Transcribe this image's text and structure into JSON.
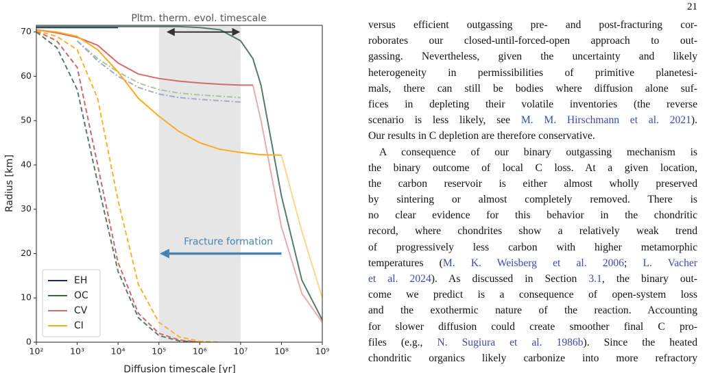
{
  "page_number": "21",
  "chart_data": {
    "type": "line",
    "title": "Pltm. therm. evol. timescale",
    "x_label": "Diffusion timescale [yr]",
    "y_label": "Radius [km]",
    "x_scale": "log",
    "xlim": [
      100,
      1000000000
    ],
    "ylim": [
      0,
      71.5
    ],
    "xticks": [
      {
        "value": 100,
        "label": "10²"
      },
      {
        "value": 1000,
        "label": "10³"
      },
      {
        "value": 10000,
        "label": "10⁴"
      },
      {
        "value": 100000,
        "label": "10⁵"
      },
      {
        "value": 1000000,
        "label": "10⁶"
      },
      {
        "value": 10000000,
        "label": "10⁷"
      },
      {
        "value": 100000000,
        "label": "10⁸"
      },
      {
        "value": 1000000000,
        "label": "10⁹"
      }
    ],
    "yticks": [
      0,
      10,
      20,
      30,
      40,
      50,
      60,
      70
    ],
    "legend": "lower left",
    "shade": {
      "x": [
        100000,
        10000000
      ],
      "color": "#e6e6e6"
    },
    "double_arrow": {
      "x": [
        150000,
        10000000
      ],
      "y": 70,
      "color": "#333333"
    },
    "annotation": {
      "text": "Fracture formation",
      "x": [
        100000000,
        100000
      ],
      "y": 20,
      "color": "#4682b4"
    },
    "x": [
      100,
      316,
      1000,
      3162,
      10000,
      31623,
      100000,
      316228,
      1000000,
      3162278,
      10000000,
      20000000,
      31622777,
      100000000,
      316227766,
      1000000000
    ],
    "series": [
      {
        "color": "#a8c4a0",
        "dash": "dashdot",
        "values": [
          null,
          null,
          68,
          64,
          61,
          58.5,
          57,
          56.2,
          55.8,
          55.5,
          55.2,
          null,
          null,
          null,
          null,
          null
        ]
      },
      {
        "color": "#a4a8cc",
        "dash": "dashdot",
        "values": [
          null,
          null,
          68,
          63.5,
          60,
          57.5,
          56,
          55.2,
          54.8,
          54.5,
          54.2,
          null,
          null,
          null,
          null,
          null
        ]
      },
      {
        "color": "#e8acac",
        "dash": "solid",
        "values": [
          null,
          null,
          null,
          null,
          null,
          null,
          null,
          null,
          null,
          null,
          null,
          58,
          50,
          26,
          11,
          4.5
        ]
      },
      {
        "color": "#ffd58e",
        "dash": "solid",
        "values": [
          null,
          null,
          null,
          null,
          null,
          null,
          null,
          null,
          null,
          null,
          null,
          null,
          null,
          42.2,
          25,
          10
        ]
      },
      {
        "color": "#557a68",
        "dash": "dashed",
        "values": [
          70,
          66.5,
          57,
          36,
          16,
          5.5,
          1.5,
          0.3,
          0,
          null,
          null,
          null,
          null,
          null,
          null,
          null
        ]
      },
      {
        "color": "#c86a6a",
        "dash": "dashed",
        "values": [
          70.2,
          68,
          62,
          40,
          18,
          6.5,
          2,
          0.5,
          0,
          null,
          null,
          null,
          null,
          null,
          null,
          null
        ]
      },
      {
        "color": "#ffb030",
        "dash": "dashed",
        "values": [
          70.3,
          69,
          66,
          55,
          32,
          13,
          4.5,
          1.2,
          0.2,
          0,
          null,
          null,
          null,
          null,
          null,
          null
        ]
      },
      {
        "name": "EH",
        "color": "#1a2a6c",
        "dash": "solid",
        "values": [
          71,
          71,
          71,
          71,
          71,
          null,
          null,
          null,
          null,
          null,
          null,
          null,
          null,
          null,
          null,
          null
        ]
      },
      {
        "name": "OC",
        "color": "#2e6e3e",
        "line_color": "#557a68",
        "dash": "solid",
        "values": [
          71.2,
          71.2,
          71.2,
          71.2,
          71.2,
          71.2,
          71.2,
          71.2,
          71,
          70.5,
          68,
          64,
          58,
          33,
          14,
          5
        ]
      },
      {
        "name": "CV",
        "color": "#d46a6a",
        "dash": "solid",
        "values": [
          70.5,
          69.8,
          68.8,
          67,
          63,
          60.5,
          59.5,
          58.9,
          58.5,
          58.2,
          58,
          58,
          null,
          null,
          null,
          null
        ]
      },
      {
        "name": "CI",
        "color": "#ffaa1e",
        "dash": "solid",
        "values": [
          70.5,
          70,
          69,
          66,
          61,
          55,
          51,
          47.5,
          45,
          43.5,
          42.8,
          42.5,
          42.3,
          42.2,
          null,
          null
        ]
      }
    ]
  },
  "text": {
    "paragraphs": [
      {
        "lines": [
          [
            {
              "text": "versus efficient outgassing pre- and post-fracturing cor-"
            }
          ],
          [
            {
              "text": "roborates our closed-until-forced-open approach to out-"
            }
          ],
          [
            {
              "text": "gassing. Nevertheless, given the uncertainty and likely"
            }
          ],
          [
            {
              "text": "heterogeneity in permissibilities of primitive planetesi-"
            }
          ],
          [
            {
              "text": "mals, there can still be bodies where diffusion alone suf-"
            }
          ],
          [
            {
              "text": "fices in depleting their volatile inventories (the reverse"
            }
          ],
          [
            {
              "text": "scenario is less likely, see "
            },
            {
              "text": "M. M. Hirschmann et al. 2021",
              "link": true
            },
            {
              "text": ")."
            }
          ],
          [
            {
              "text": "Our results in C depletion are therefore conservative."
            }
          ]
        ]
      },
      {
        "lines": [
          [
            {
              "text": "A consequence of our binary outgassing mechanism is"
            }
          ],
          [
            {
              "text": "the binary outcome of local C loss. At a given location,"
            }
          ],
          [
            {
              "text": "the carbon reservoir is either almost wholly preserved"
            }
          ],
          [
            {
              "text": "by sintering or almost completely removed. There is"
            }
          ],
          [
            {
              "text": "no clear evidence for this behavior in the chondritic"
            }
          ],
          [
            {
              "text": "record, where chondrites show a relatively weak trend"
            }
          ],
          [
            {
              "text": "of progressively less carbon with higher metamorphic"
            }
          ],
          [
            {
              "text": "temperatures ("
            },
            {
              "text": "M. K. Weisberg et al. 2006",
              "link": true
            },
            {
              "text": "; "
            },
            {
              "text": "L. Vacher",
              "link": true
            }
          ],
          [
            {
              "text": "et al. 2024",
              "link": true
            },
            {
              "text": "). As discussed in Section "
            },
            {
              "text": "3.1",
              "link": true
            },
            {
              "text": ", the binary out-"
            }
          ],
          [
            {
              "text": "come we predict is a consequence of open-system loss"
            }
          ],
          [
            {
              "text": "and the exothermic nature of the reaction. Accounting"
            }
          ],
          [
            {
              "text": "for slower diffusion could create smoother final C pro-"
            }
          ],
          [
            {
              "text": "files (e.g., "
            },
            {
              "text": "N. Sugiura et al. 1986b",
              "link": true
            },
            {
              "text": "). Since the heated"
            }
          ],
          [
            {
              "text": "chondritic organics likely carbonize into more refractory"
            }
          ]
        ]
      }
    ]
  }
}
